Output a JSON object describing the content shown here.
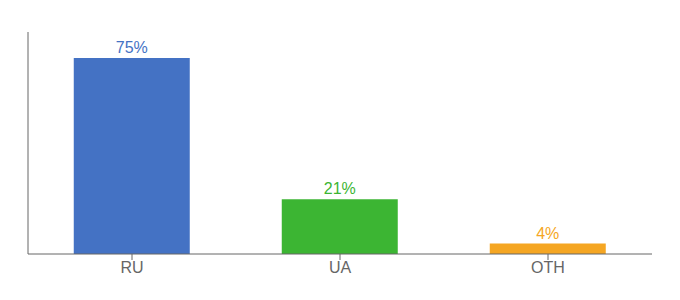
{
  "chart_data": {
    "type": "bar",
    "categories": [
      "RU",
      "UA",
      "OTH"
    ],
    "values": [
      75,
      21,
      4
    ],
    "value_labels": [
      "75%",
      "21%",
      "4%"
    ],
    "colors": [
      "#4472c4",
      "#3cb533",
      "#f5a623"
    ],
    "ylim": [
      0,
      85
    ],
    "data_labels": true,
    "tick_labels": "x"
  }
}
